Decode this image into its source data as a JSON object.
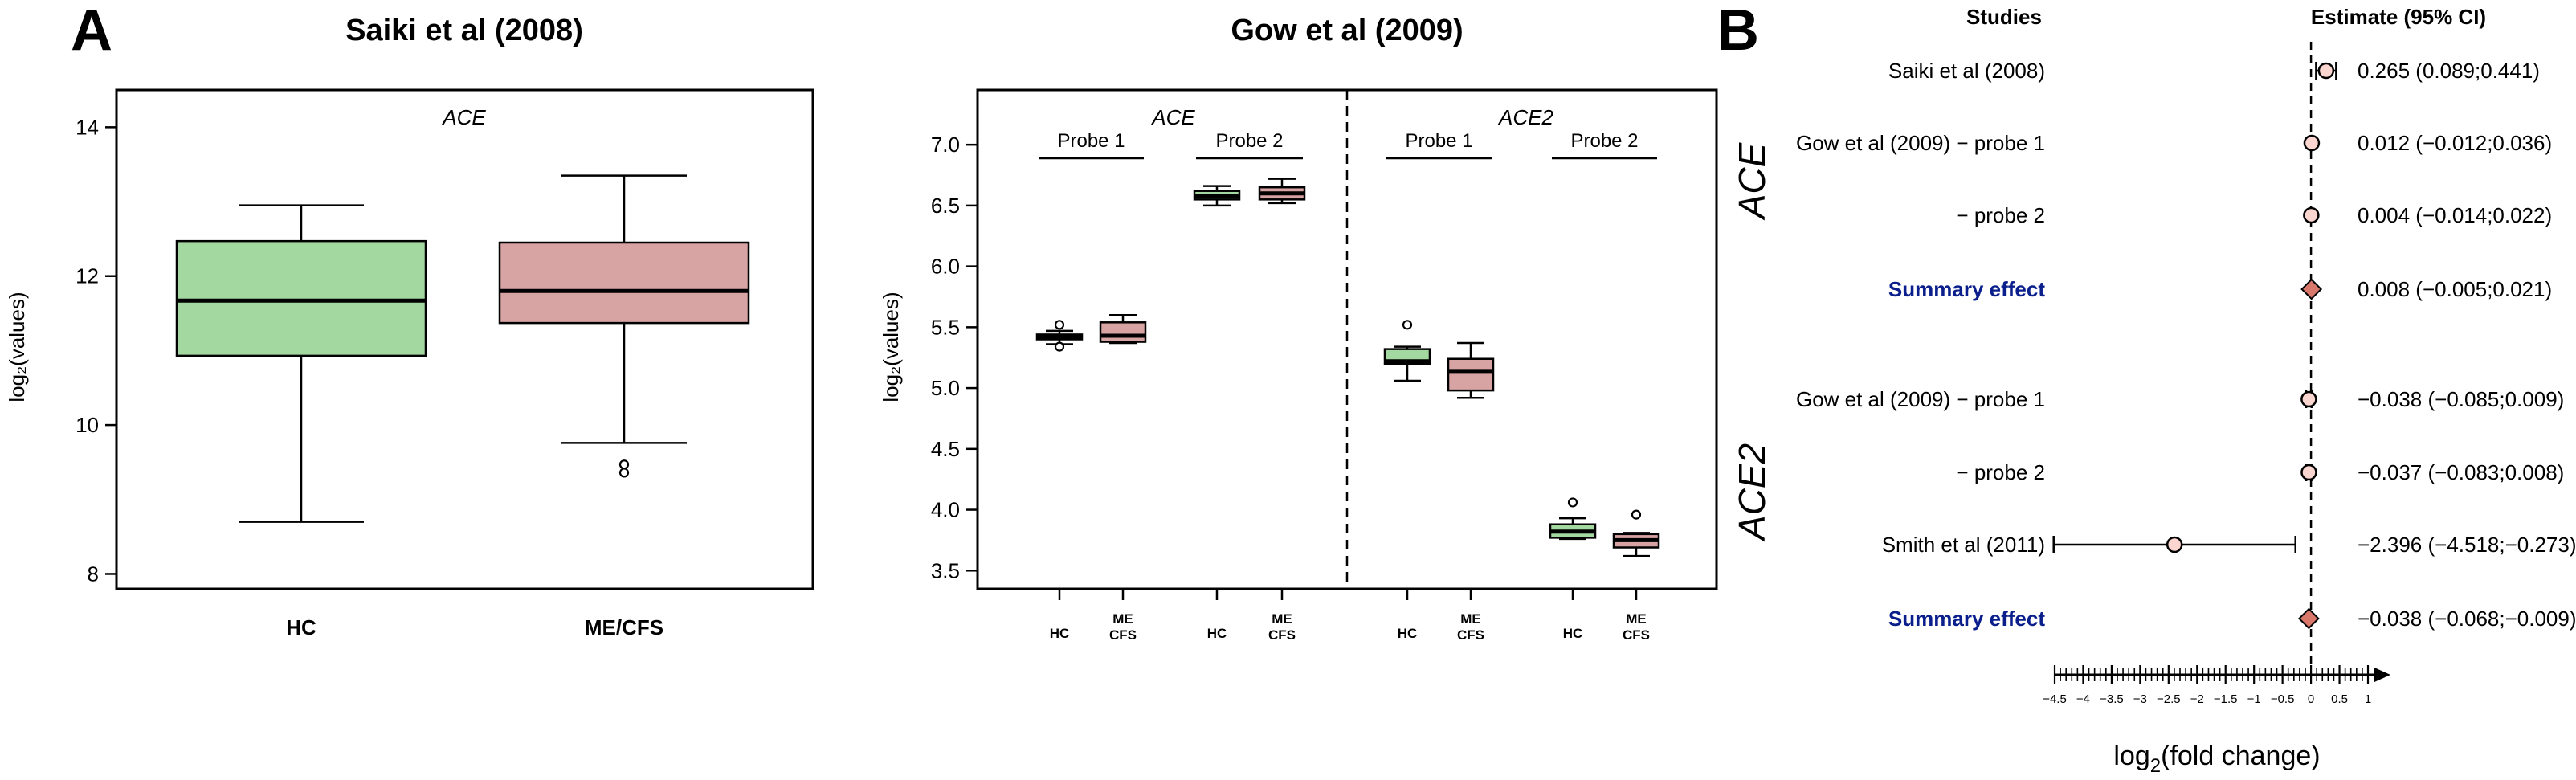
{
  "panel_a_label": "A",
  "panel_b_label": "B",
  "chart_data": [
    {
      "type": "box",
      "title": "Saiki et al (2008)",
      "annotation": "ACE",
      "ylabel": "log₂(values)",
      "ylim": [
        7.8,
        14.5
      ],
      "yticks": [
        8,
        10,
        12,
        14
      ],
      "categories": [
        "HC",
        "ME/CFS"
      ],
      "boxes": [
        {
          "group": "HC",
          "min": 8.7,
          "q1": 10.93,
          "median": 11.67,
          "q3": 12.47,
          "max": 12.95,
          "outliers": [],
          "color": "#a3d8a0"
        },
        {
          "group": "ME/CFS",
          "min": 9.76,
          "q1": 11.37,
          "median": 11.8,
          "q3": 12.45,
          "max": 13.35,
          "outliers": [
            9.47,
            9.36
          ],
          "color": "#d7a3a3"
        }
      ]
    },
    {
      "type": "box",
      "title": "Gow et al (2009)",
      "ylabel": "log₂(values)",
      "ylim": [
        3.35,
        7.45
      ],
      "yticks": [
        "3.5",
        "4.0",
        "4.5",
        "5.0",
        "5.5",
        "6.0",
        "6.5",
        "7.0"
      ],
      "genes": [
        "ACE",
        "ACE2"
      ],
      "probe_labels": [
        "Probe 1",
        "Probe 2",
        "Probe 1",
        "Probe 2"
      ],
      "x_labels": [
        [
          "HC"
        ],
        [
          "ME",
          "CFS"
        ],
        [
          "HC"
        ],
        [
          "ME",
          "CFS"
        ],
        [
          "HC"
        ],
        [
          "ME",
          "CFS"
        ],
        [
          "HC"
        ],
        [
          "ME",
          "CFS"
        ]
      ],
      "boxes": [
        {
          "gene": "ACE",
          "probe": "Probe 1",
          "group": "HC",
          "min": 5.36,
          "q1": 5.4,
          "median": 5.42,
          "q3": 5.44,
          "max": 5.47,
          "outliers": [
            5.52,
            5.34
          ],
          "color": "#a3d8a0"
        },
        {
          "gene": "ACE",
          "probe": "Probe 1",
          "group": "ME/CFS",
          "min": 5.37,
          "q1": 5.38,
          "median": 5.43,
          "q3": 5.54,
          "max": 5.6,
          "outliers": [],
          "color": "#d7a3a3"
        },
        {
          "gene": "ACE",
          "probe": "Probe 2",
          "group": "HC",
          "min": 6.5,
          "q1": 6.55,
          "median": 6.58,
          "q3": 6.62,
          "max": 6.66,
          "outliers": [],
          "color": "#a3d8a0"
        },
        {
          "gene": "ACE",
          "probe": "Probe 2",
          "group": "ME/CFS",
          "min": 6.52,
          "q1": 6.55,
          "median": 6.6,
          "q3": 6.65,
          "max": 6.72,
          "outliers": [],
          "color": "#d7a3a3"
        },
        {
          "gene": "ACE2",
          "probe": "Probe 1",
          "group": "HC",
          "min": 5.06,
          "q1": 5.2,
          "median": 5.22,
          "q3": 5.32,
          "max": 5.34,
          "outliers": [
            5.52
          ],
          "color": "#a3d8a0"
        },
        {
          "gene": "ACE2",
          "probe": "Probe 1",
          "group": "ME/CFS",
          "min": 4.92,
          "q1": 4.98,
          "median": 5.14,
          "q3": 5.24,
          "max": 5.37,
          "outliers": [],
          "color": "#d7a3a3"
        },
        {
          "gene": "ACE2",
          "probe": "Probe 2",
          "group": "HC",
          "min": 3.76,
          "q1": 3.77,
          "median": 3.82,
          "q3": 3.88,
          "max": 3.93,
          "outliers": [
            4.06
          ],
          "color": "#a3d8a0"
        },
        {
          "gene": "ACE2",
          "probe": "Probe 2",
          "group": "ME/CFS",
          "min": 3.62,
          "q1": 3.69,
          "median": 3.75,
          "q3": 3.8,
          "max": 3.81,
          "outliers": [
            3.96
          ],
          "color": "#d7a3a3"
        }
      ]
    },
    {
      "type": "forest",
      "studies_header": "Studies",
      "estimate_header": "Estimate (95% CI)",
      "xlabel_base": "log",
      "xlabel_sub": "2",
      "xlabel_rest": "(fold change)",
      "xlim": [
        -4.5,
        1
      ],
      "xtick_labels": [
        "−4.5",
        "−4",
        "−3.5",
        "−3",
        "−2.5",
        "−2",
        "−1.5",
        "−1",
        "−0.5",
        "0",
        "0.5",
        "1"
      ],
      "groups": [
        "ACE",
        "ACE2"
      ],
      "rows": [
        {
          "group": "ACE",
          "label": "Saiki et al (2008)",
          "estimate": 0.265,
          "lo": 0.089,
          "hi": 0.441,
          "text": "0.265 (0.089;0.441)",
          "kind": "study"
        },
        {
          "group": "ACE",
          "label": "Gow et al (2009) − probe 1",
          "estimate": 0.012,
          "lo": -0.012,
          "hi": 0.036,
          "text": "0.012 (−0.012;0.036)",
          "kind": "study"
        },
        {
          "group": "ACE",
          "label": "− probe 2",
          "estimate": 0.004,
          "lo": -0.014,
          "hi": 0.022,
          "text": "0.004 (−0.014;0.022)",
          "kind": "study"
        },
        {
          "group": "ACE",
          "label": "Summary effect",
          "estimate": 0.008,
          "lo": -0.005,
          "hi": 0.021,
          "text": "0.008 (−0.005;0.021)",
          "kind": "summary"
        },
        {
          "group": "ACE2",
          "label": "Gow et al (2009) − probe 1",
          "estimate": -0.038,
          "lo": -0.085,
          "hi": 0.009,
          "text": "−0.038 (−0.085;0.009)",
          "kind": "study"
        },
        {
          "group": "ACE2",
          "label": "− probe 2",
          "estimate": -0.037,
          "lo": -0.083,
          "hi": 0.008,
          "text": "−0.037 (−0.083;0.008)",
          "kind": "study"
        },
        {
          "group": "ACE2",
          "label": "Smith et al (2011)",
          "estimate": -2.396,
          "lo": -4.518,
          "hi": -0.273,
          "text": "−2.396 (−4.518;−0.273)",
          "kind": "study"
        },
        {
          "group": "ACE2",
          "label": "Summary effect",
          "estimate": -0.038,
          "lo": -0.068,
          "hi": -0.009,
          "text": "−0.038 (−0.068;−0.009)",
          "kind": "summary"
        }
      ],
      "colors": {
        "study_fill": "#fbd5cf",
        "summary_fill": "#d8776a",
        "summary_text": "#0b1f8c"
      }
    }
  ]
}
